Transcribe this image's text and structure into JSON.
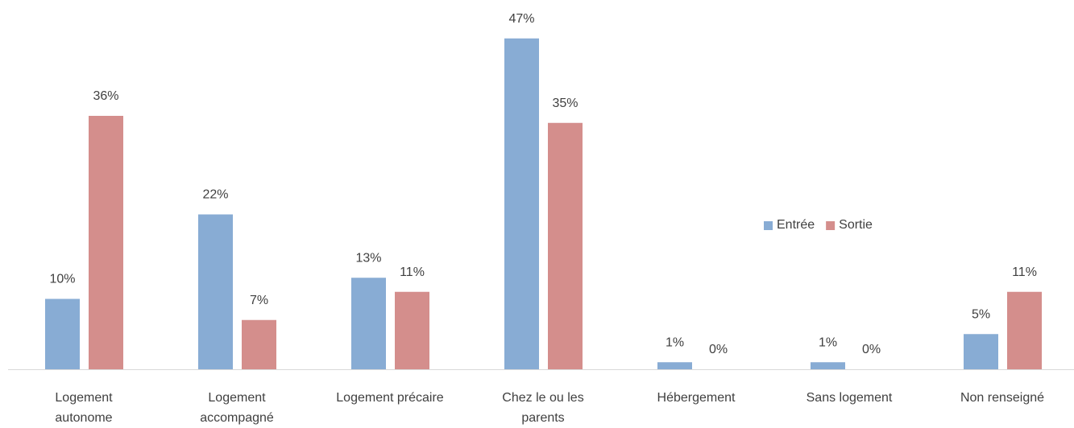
{
  "chart_data": {
    "type": "bar",
    "categories": [
      "Logement autonome",
      "Logement accompagné",
      "Logement précaire",
      "Chez le ou les parents",
      "Hébergement",
      "Sans logement",
      "Non renseigné"
    ],
    "series": [
      {
        "name": "Entrée",
        "color": "#88acd4",
        "values": [
          10,
          22,
          13,
          47,
          1,
          1,
          5
        ],
        "value_labels": [
          "10%",
          "22%",
          "13%",
          "47%",
          "1%",
          "1%",
          "5%"
        ]
      },
      {
        "name": "Sortie",
        "color": "#d48e8c",
        "values": [
          36,
          7,
          11,
          35,
          0,
          0,
          11
        ],
        "value_labels": [
          "36%",
          "7%",
          "11%",
          "35%",
          "0%",
          "0%",
          "11%"
        ]
      }
    ],
    "legend": "right"
  }
}
